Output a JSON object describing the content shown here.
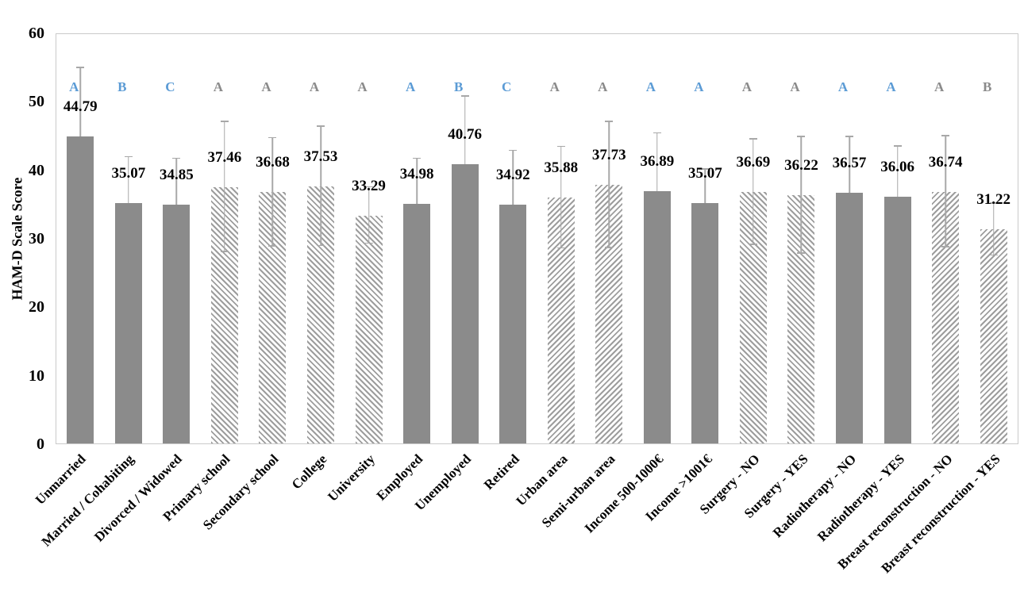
{
  "chart_data": {
    "type": "bar",
    "title": "",
    "xlabel": "",
    "ylabel": "HAM-D Scale Score",
    "ylim": [
      0,
      60
    ],
    "yticks": [
      0,
      10,
      20,
      30,
      40,
      50,
      60
    ],
    "grid": false,
    "legend": false,
    "categories": [
      "Unmarried",
      "Married / Cohabiting",
      "Divorced / Widowed",
      "Primary school",
      "Secondary school",
      "College",
      "University",
      "Employed",
      "Unemployed",
      "Retired",
      "Urban area",
      "Semi-urban area",
      "Income 500-1000€",
      "Income >1001€",
      "Surgery - NO",
      "Surgery - YES",
      "Radiotherapy - NO",
      "Radiotherapy - YES",
      "Breast reconstruction - NO",
      "Breast reconstruction - YES"
    ],
    "values": [
      44.79,
      35.07,
      34.85,
      37.46,
      36.68,
      37.53,
      33.29,
      34.98,
      40.76,
      34.92,
      35.88,
      37.73,
      36.89,
      35.07,
      36.69,
      36.22,
      36.57,
      36.06,
      36.74,
      31.22
    ],
    "value_labels": [
      "44.79",
      "35.07",
      "34.85",
      "37.46",
      "36.68",
      "37.53",
      "33.29",
      "34.98",
      "40.76",
      "34.92",
      "35.88",
      "37.73",
      "36.89",
      "35.07",
      "36.69",
      "36.22",
      "36.57",
      "36.06",
      "36.74",
      "31.22"
    ],
    "error_upper": [
      10.0,
      6.7,
      6.7,
      9.5,
      7.9,
      8.7,
      4.1,
      6.6,
      9.9,
      7.8,
      7.4,
      9.2,
      8.4,
      4.9,
      7.7,
      8.5,
      8.2,
      7.3,
      8.1,
      3.8
    ],
    "significance_letters": [
      "A",
      "B",
      "C",
      "A",
      "A",
      "A",
      "A",
      "A",
      "B",
      "C",
      "A",
      "A",
      "A",
      "A",
      "A",
      "A",
      "A",
      "A",
      "A",
      "B"
    ],
    "letter_colors": [
      "blue",
      "blue",
      "blue",
      "gray",
      "gray",
      "gray",
      "gray",
      "blue",
      "blue",
      "blue",
      "gray",
      "gray",
      "blue",
      "blue",
      "gray",
      "gray",
      "blue",
      "blue",
      "gray",
      "gray"
    ],
    "bar_patterns": [
      "solid",
      "solid",
      "solid",
      "hatch-backslash",
      "hatch-backslash",
      "hatch-backslash",
      "hatch-backslash",
      "solid",
      "solid",
      "solid",
      "hatch-slash",
      "hatch-slash",
      "solid",
      "solid",
      "hatch-backslash",
      "hatch-backslash",
      "solid",
      "solid",
      "hatch-slash",
      "hatch-slash"
    ]
  },
  "colors": {
    "letter_blue": "#5B9BD5",
    "letter_gray": "#8A8A8A",
    "bar_fill": "#8B8B8B",
    "hatch_stripe": "#9D9D9D",
    "error_bar": "#A8A8A8",
    "plot_border": "#CACACA",
    "text": "#000000",
    "background": "#FFFFFF"
  }
}
